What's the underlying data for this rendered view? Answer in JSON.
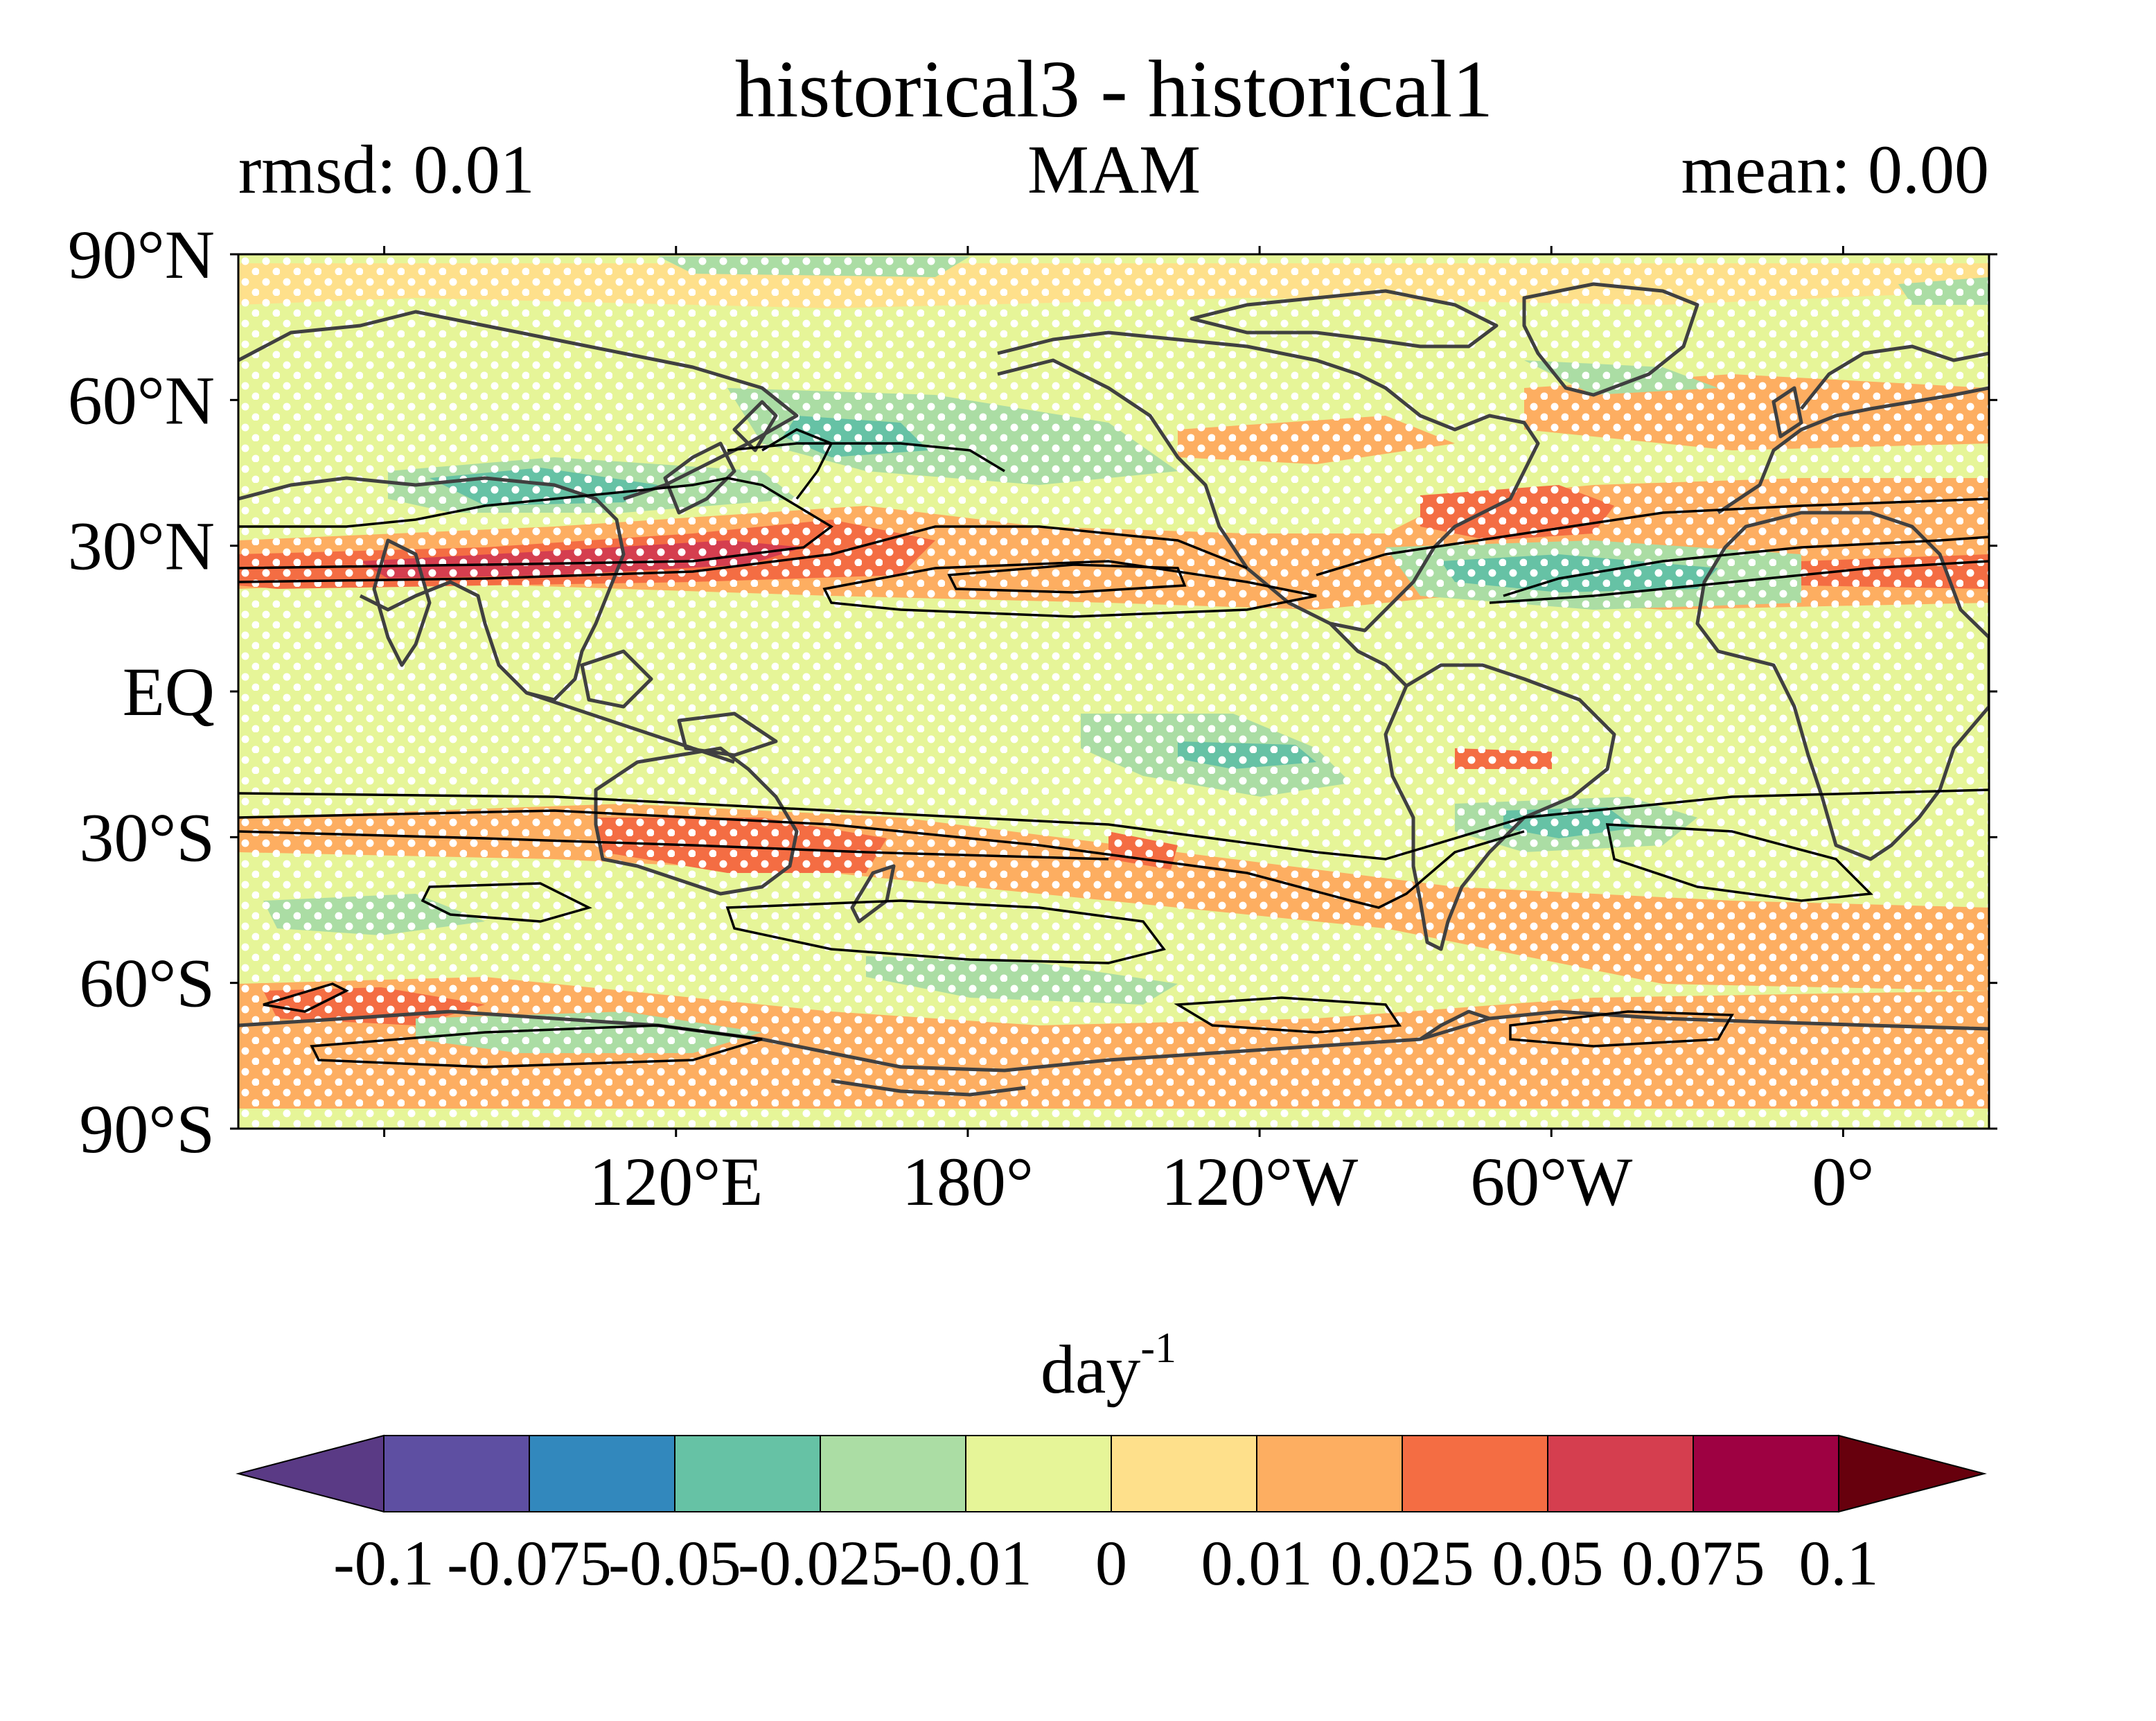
{
  "title": "historical3 - historical1",
  "subtitle_left": "rmsd: 0.01",
  "subtitle_center": "MAM",
  "subtitle_right": "mean: 0.00",
  "lat_labels": [
    "90°N",
    "60°N",
    "30°N",
    "EQ",
    "30°S",
    "60°S",
    "90°S"
  ],
  "lon_labels": [
    "120°E",
    "180°",
    "120°W",
    "60°W",
    "0°"
  ],
  "colorbar": {
    "unit_base": "day",
    "unit_exponent": "-1",
    "colors": [
      "#5e4fa2",
      "#3288bd",
      "#66c2a5",
      "#abdda4",
      "#e6f598",
      "#fee08b",
      "#fdae61",
      "#f46d43",
      "#d53e4f",
      "#9e0142"
    ],
    "under_color": "#5a3a85",
    "over_color": "#67000d",
    "tick_labels": [
      "-0.1",
      "-0.075",
      "-0.05",
      "-0.025",
      "-0.01",
      "0",
      "0.01",
      "0.025",
      "0.05",
      "0.075",
      "0.1"
    ]
  },
  "colors": {
    "background_field": "#e6f598",
    "positive_light": "#fee08b",
    "positive_mid": "#fdae61",
    "positive_strong": "#f46d43",
    "negative_light": "#abdda4",
    "negative_mid": "#66c2a5",
    "coastline": "#404040",
    "contour": "#000000",
    "stipple": "#ffffff"
  }
}
